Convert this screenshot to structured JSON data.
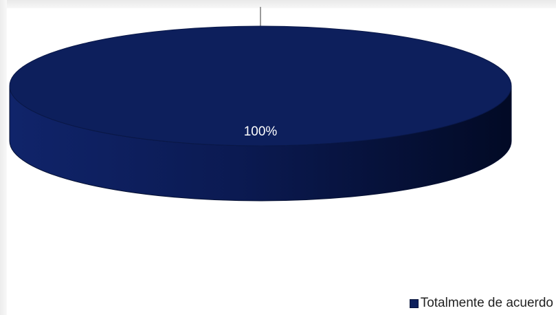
{
  "chart_data": {
    "type": "pie",
    "title": "",
    "categories": [
      "Totalmente de acuerdo"
    ],
    "values": [
      100
    ],
    "data_labels": [
      "100%"
    ],
    "colors": [
      "#0d1f5c"
    ],
    "legend_position": "bottom-right",
    "three_d": true
  },
  "legend": {
    "items": [
      {
        "label": "Totalmente de acuerdo",
        "color": "#0d1f5c"
      }
    ]
  }
}
